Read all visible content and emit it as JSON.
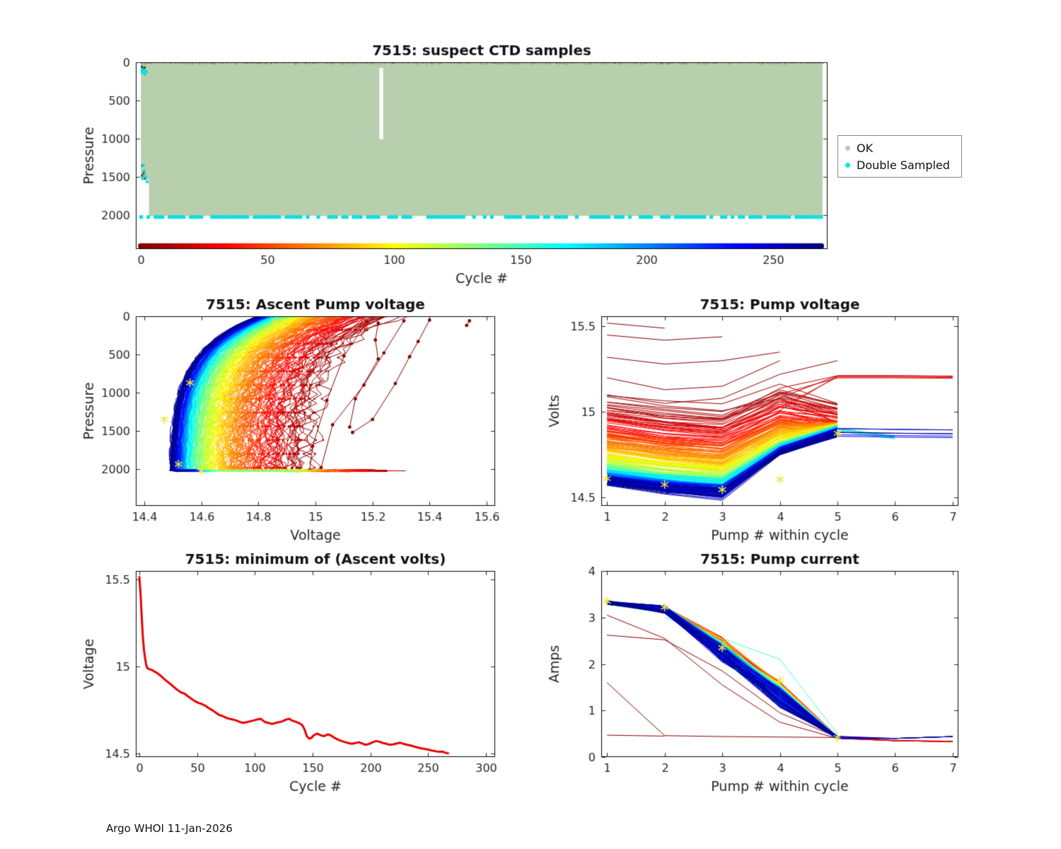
{
  "figure": {
    "footer": "Argo WHOI 11-Jan-2026",
    "background": "#ffffff"
  },
  "legend": {
    "items": [
      {
        "label": "OK",
        "marker_color": "#c3c3c3"
      },
      {
        "label": "Double Sampled",
        "marker_color": "#00e5e5"
      }
    ]
  },
  "chart_data": [
    {
      "id": "suspect-ctd",
      "type": "scatter",
      "title": "7515: suspect CTD samples",
      "xlabel": "Cycle #",
      "ylabel": "Pressure",
      "xlim": [
        -2,
        271.5
      ],
      "ylim": [
        0,
        2440
      ],
      "y_reverse": true,
      "xticks": [
        0,
        50,
        100,
        150,
        200,
        250
      ],
      "xtick_labels": [
        "0",
        "50",
        "100",
        "150",
        "200",
        "250"
      ],
      "yticks": [
        0,
        500,
        1000,
        1500,
        2000
      ],
      "ytick_labels": [
        "0",
        "500",
        "1000",
        "1500",
        "2000"
      ],
      "n_cycles": 270,
      "ok_color": "#b8cfae",
      "ok_region": {
        "cycle_range": [
          0,
          269.5
        ],
        "pressure_range": [
          6,
          2008
        ]
      },
      "white_gap": {
        "cycle_range": [
          94.3,
          95.8
        ],
        "pressure_range": [
          75,
          1005
        ]
      },
      "left_notch": {
        "cycle_range": [
          -2,
          3.2
        ],
        "pressure_range": [
          1530,
          2008
        ]
      },
      "double_sampled_color": "#00e0e0",
      "double_sampled_row": {
        "pressure": 2022,
        "cycle_range": [
          0,
          269
        ],
        "density": 0.72
      },
      "double_sampled_points": [
        [
          0.5,
          95
        ],
        [
          0.5,
          130
        ],
        [
          1.2,
          110
        ],
        [
          1.5,
          155
        ],
        [
          2.2,
          125
        ],
        [
          1.0,
          1345
        ],
        [
          1.3,
          1420
        ],
        [
          1.8,
          1495
        ],
        [
          0.8,
          1520
        ],
        [
          2.5,
          1560
        ]
      ],
      "dark_points": [
        [
          0.4,
          60
        ],
        [
          0.9,
          85
        ],
        [
          1.5,
          70
        ],
        [
          0.6,
          1350
        ],
        [
          1.1,
          1450
        ],
        [
          1.6,
          1520
        ],
        [
          0.5,
          1480
        ]
      ],
      "cycle_color_strip": {
        "pressure": 2400,
        "cycle_range": [
          0,
          269
        ],
        "colormap": "jet-reversed",
        "dot_radius": 4
      }
    },
    {
      "id": "ascent-pump-voltage",
      "type": "line",
      "title": "7515: Ascent Pump voltage",
      "xlabel": "Voltage",
      "ylabel": "Pressure",
      "xlim": [
        14.37,
        15.63
      ],
      "ylim": [
        0,
        2480
      ],
      "y_reverse": true,
      "xticks": [
        14.4,
        14.6,
        14.8,
        15,
        15.2,
        15.4,
        15.6
      ],
      "xtick_labels": [
        "14.4",
        "14.6",
        "14.8",
        "15",
        "15.2",
        "15.4",
        "15.6"
      ],
      "yticks": [
        0,
        500,
        1000,
        1500,
        2000
      ],
      "ytick_labels": [
        "0",
        "500",
        "1000",
        "1500",
        "2000"
      ],
      "n_cycles": 270,
      "colormap": "jet-reversed-by-cycle",
      "deep_voltage_model": {
        "floor": 14.47,
        "amp": 0.52,
        "tau_cycles": 85,
        "early_spike_amp": 0.5,
        "early_spike_tau": 2
      },
      "surface_offset": 0.31,
      "decay_pressure": 470,
      "max_pressure": 2020,
      "early_profiles": [
        {
          "cycle": 0,
          "points": [
            [
              15.54,
              60
            ],
            [
              15.53,
              120
            ]
          ]
        },
        {
          "cycle": 1,
          "points": [
            [
              15.4,
              50
            ],
            [
              15.36,
              330
            ],
            [
              15.33,
              530
            ],
            [
              15.28,
              880
            ],
            [
              15.2,
              1350
            ],
            [
              15.13,
              1520
            ]
          ]
        },
        {
          "cycle": 2,
          "points": [
            [
              15.22,
              90
            ],
            [
              15.21,
              310
            ],
            [
              15.22,
              560
            ],
            [
              15.14,
              1080
            ],
            [
              15.12,
              1450
            ]
          ]
        },
        {
          "cycle": 3,
          "points": [
            [
              15.31,
              60
            ],
            [
              15.24,
              480
            ],
            [
              15.17,
              900
            ],
            [
              15.06,
              1420
            ],
            [
              15.02,
              1980
            ]
          ]
        },
        {
          "cycle": 4,
          "points": [
            [
              15.18,
              70
            ],
            [
              15.1,
              520
            ],
            [
              15.04,
              1100
            ],
            [
              14.99,
              1700
            ],
            [
              14.98,
              2010
            ]
          ]
        }
      ],
      "asterisks": [
        [
          14.86,
          70
        ],
        [
          14.56,
          870
        ],
        [
          14.47,
          1350
        ],
        [
          14.52,
          1935
        ],
        [
          14.6,
          2020
        ]
      ],
      "asterisk_color": "#efe642"
    },
    {
      "id": "pump-voltage",
      "type": "line",
      "title": "7515: Pump voltage",
      "xlabel": "Pump # within cycle",
      "ylabel": "Volts",
      "xlim": [
        0.9,
        7.1
      ],
      "ylim": [
        14.45,
        15.56
      ],
      "xticks": [
        1,
        2,
        3,
        4,
        5,
        6,
        7
      ],
      "xtick_labels": [
        "1",
        "2",
        "3",
        "4",
        "5",
        "6",
        "7"
      ],
      "yticks": [
        14.5,
        15,
        15.5
      ],
      "ytick_labels": [
        "14.5",
        "15",
        "15.5"
      ],
      "n_cycles": 270,
      "colormap": "jet-reversed-by-cycle",
      "deep_voltage_model": {
        "floor": 14.47,
        "amp": 0.52,
        "tau_cycles": 85,
        "early_spike_amp": 0.5,
        "early_spike_tau": 2
      },
      "convergence_volts": 14.875,
      "early_lines": [
        {
          "cycle": 0,
          "points": [
            [
              1,
              15.52
            ],
            [
              2,
              15.49
            ]
          ]
        },
        {
          "cycle": 1,
          "points": [
            [
              1,
              15.45
            ],
            [
              2,
              15.42
            ],
            [
              3,
              15.44
            ]
          ]
        },
        {
          "cycle": 2,
          "points": [
            [
              1,
              15.32
            ],
            [
              2,
              15.28
            ],
            [
              3,
              15.3
            ],
            [
              4,
              15.35
            ]
          ]
        },
        {
          "cycle": 3,
          "points": [
            [
              1,
              15.2
            ],
            [
              2,
              15.13
            ],
            [
              3,
              15.15
            ],
            [
              4,
              15.3
            ]
          ]
        },
        {
          "cycle": 4,
          "points": [
            [
              1,
              15.1
            ],
            [
              2,
              15.05
            ],
            [
              3,
              15.08
            ],
            [
              4,
              15.22
            ],
            [
              5,
              15.3
            ]
          ]
        }
      ],
      "asterisks": [
        [
          1,
          14.61
        ],
        [
          2,
          14.575
        ],
        [
          3,
          14.545
        ],
        [
          4,
          14.605
        ],
        [
          5,
          14.875
        ]
      ],
      "asterisk_color": "#efe642"
    },
    {
      "id": "min-ascent-volts",
      "type": "line",
      "title": "7515: minimum of (Ascent volts)",
      "xlabel": "Cycle #",
      "ylabel": "Voltage",
      "xlim": [
        -3,
        308
      ],
      "ylim": [
        14.48,
        15.55
      ],
      "xticks": [
        0,
        50,
        100,
        150,
        200,
        250,
        300
      ],
      "xtick_labels": [
        "0",
        "50",
        "100",
        "150",
        "200",
        "250",
        "300"
      ],
      "yticks": [
        14.5,
        15,
        15.5
      ],
      "ytick_labels": [
        "14.5",
        "15",
        "15.5"
      ],
      "line_color": "#e60000",
      "line_width": 3,
      "points": [
        [
          0,
          15.52
        ],
        [
          1,
          15.43
        ],
        [
          2,
          15.3
        ],
        [
          3,
          15.18
        ],
        [
          4,
          15.1
        ],
        [
          5,
          15.05
        ],
        [
          6,
          15.01
        ],
        [
          7,
          14.99
        ],
        [
          9,
          14.985
        ],
        [
          11,
          14.98
        ],
        [
          13,
          14.972
        ],
        [
          15,
          14.965
        ],
        [
          17,
          14.955
        ],
        [
          19,
          14.945
        ],
        [
          21,
          14.932
        ],
        [
          24,
          14.915
        ],
        [
          27,
          14.9
        ],
        [
          30,
          14.882
        ],
        [
          33,
          14.866
        ],
        [
          36,
          14.852
        ],
        [
          39,
          14.845
        ],
        [
          42,
          14.83
        ],
        [
          45,
          14.816
        ],
        [
          48,
          14.802
        ],
        [
          51,
          14.792
        ],
        [
          54,
          14.785
        ],
        [
          57,
          14.776
        ],
        [
          60,
          14.762
        ],
        [
          63,
          14.75
        ],
        [
          66,
          14.736
        ],
        [
          69,
          14.722
        ],
        [
          72,
          14.716
        ],
        [
          75,
          14.706
        ],
        [
          78,
          14.7
        ],
        [
          81,
          14.696
        ],
        [
          84,
          14.69
        ],
        [
          87,
          14.682
        ],
        [
          90,
          14.676
        ],
        [
          93,
          14.68
        ],
        [
          96,
          14.686
        ],
        [
          99,
          14.69
        ],
        [
          102,
          14.696
        ],
        [
          105,
          14.7
        ],
        [
          107,
          14.69
        ],
        [
          109,
          14.68
        ],
        [
          112,
          14.676
        ],
        [
          115,
          14.67
        ],
        [
          118,
          14.676
        ],
        [
          121,
          14.68
        ],
        [
          124,
          14.686
        ],
        [
          127,
          14.695
        ],
        [
          130,
          14.7
        ],
        [
          132,
          14.69
        ],
        [
          135,
          14.684
        ],
        [
          138,
          14.676
        ],
        [
          141,
          14.664
        ],
        [
          143,
          14.64
        ],
        [
          145,
          14.6
        ],
        [
          147,
          14.586
        ],
        [
          149,
          14.59
        ],
        [
          151,
          14.605
        ],
        [
          154,
          14.615
        ],
        [
          157,
          14.605
        ],
        [
          160,
          14.6
        ],
        [
          163,
          14.61
        ],
        [
          166,
          14.604
        ],
        [
          169,
          14.59
        ],
        [
          172,
          14.58
        ],
        [
          175,
          14.572
        ],
        [
          178,
          14.566
        ],
        [
          181,
          14.56
        ],
        [
          184,
          14.556
        ],
        [
          187,
          14.56
        ],
        [
          190,
          14.565
        ],
        [
          193,
          14.558
        ],
        [
          196,
          14.55
        ],
        [
          199,
          14.556
        ],
        [
          202,
          14.565
        ],
        [
          205,
          14.572
        ],
        [
          208,
          14.568
        ],
        [
          211,
          14.56
        ],
        [
          214,
          14.556
        ],
        [
          217,
          14.55
        ],
        [
          220,
          14.553
        ],
        [
          223,
          14.558
        ],
        [
          226,
          14.562
        ],
        [
          229,
          14.555
        ],
        [
          232,
          14.55
        ],
        [
          235,
          14.546
        ],
        [
          238,
          14.54
        ],
        [
          241,
          14.535
        ],
        [
          244,
          14.53
        ],
        [
          247,
          14.527
        ],
        [
          250,
          14.523
        ],
        [
          253,
          14.518
        ],
        [
          256,
          14.514
        ],
        [
          259,
          14.51
        ],
        [
          262,
          14.512
        ],
        [
          264,
          14.507
        ],
        [
          266,
          14.503
        ],
        [
          268,
          14.5
        ]
      ]
    },
    {
      "id": "pump-current",
      "type": "line",
      "title": "7515: Pump current",
      "xlabel": "Pump # within cycle",
      "ylabel": "Amps",
      "xlim": [
        0.9,
        7.1
      ],
      "ylim": [
        0,
        4
      ],
      "xticks": [
        1,
        2,
        3,
        4,
        5,
        6,
        7
      ],
      "xtick_labels": [
        "1",
        "2",
        "3",
        "4",
        "5",
        "6",
        "7"
      ],
      "yticks": [
        0,
        1,
        2,
        3,
        4
      ],
      "ytick_labels": [
        "0",
        "1",
        "2",
        "3",
        "4"
      ],
      "n_cycles": 270,
      "colormap": "jet-reversed-by-cycle",
      "typical_line": {
        "pump1": 3.32,
        "pump2": 3.17,
        "pump3": 2.3,
        "pump4": 1.35,
        "pump5": 0.42,
        "pump6": 0.4,
        "pump7": 0.44
      },
      "outlier_lines": [
        {
          "cycle": 1,
          "points": [
            [
              1,
              2.62
            ],
            [
              2,
              2.52
            ],
            [
              3,
              1.85
            ],
            [
              4,
              0.95
            ],
            [
              5,
              0.42
            ]
          ]
        },
        {
          "cycle": 2,
          "points": [
            [
              1,
              1.6
            ],
            [
              2,
              0.46
            ],
            [
              3,
              0.44
            ],
            [
              4,
              0.43
            ],
            [
              5,
              0.42
            ]
          ]
        },
        {
          "cycle": 3,
          "points": [
            [
              1,
              0.47
            ],
            [
              2,
              0.45
            ]
          ]
        },
        {
          "cycle": 4,
          "points": [
            [
              1,
              3.05
            ],
            [
              2,
              2.55
            ],
            [
              3,
              1.55
            ],
            [
              4,
              0.75
            ],
            [
              5,
              0.4
            ],
            [
              6,
              0.36
            ],
            [
              7,
              0.34
            ]
          ]
        },
        {
          "cycle": 150,
          "points": [
            [
              2,
              3.0
            ],
            [
              3,
              2.55
            ],
            [
              4,
              2.1
            ],
            [
              5,
              0.5
            ]
          ]
        }
      ],
      "asterisks": [
        [
          1,
          3.35
        ],
        [
          2,
          3.22
        ],
        [
          3,
          2.35
        ],
        [
          4,
          1.65
        ],
        [
          5,
          0.42
        ]
      ],
      "asterisk_color": "#efe642"
    }
  ]
}
